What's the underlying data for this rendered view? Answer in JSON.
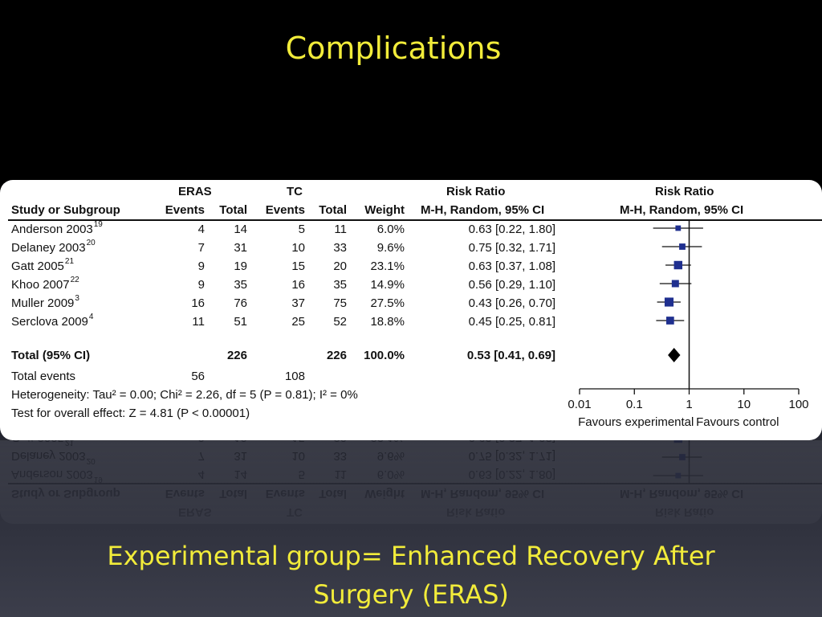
{
  "slide": {
    "title": "Complications",
    "caption_line1": "Experimental group= Enhanced Recovery After",
    "caption_line2": "Surgery (ERAS)"
  },
  "colors": {
    "title": "#f2ec3a",
    "marker": "#1f2f8f",
    "diamond": "#000000"
  },
  "chart_data": {
    "type": "table",
    "subtype": "forest-plot",
    "headers": {
      "group_eras": "ERAS",
      "group_tc": "TC",
      "study": "Study or Subgroup",
      "eras_events": "Events",
      "eras_total": "Total",
      "tc_events": "Events",
      "tc_total": "Total",
      "weight": "Weight",
      "rr_title": "Risk Ratio",
      "rr_method": "M-H, Random, 95% CI",
      "plot_title": "Risk Ratio",
      "plot_method": "M-H, Random, 95% CI"
    },
    "studies": [
      {
        "name": "Anderson 2003",
        "ref": "19",
        "eras_events": "4",
        "eras_total": "14",
        "tc_events": "5",
        "tc_total": "11",
        "weight": "6.0%",
        "ci_text": "0.63 [0.22, 1.80]",
        "rr": 0.63,
        "lo": 0.22,
        "hi": 1.8,
        "w": 6.0
      },
      {
        "name": "Delaney 2003",
        "ref": "20",
        "eras_events": "7",
        "eras_total": "31",
        "tc_events": "10",
        "tc_total": "33",
        "weight": "9.6%",
        "ci_text": "0.75 [0.32, 1.71]",
        "rr": 0.75,
        "lo": 0.32,
        "hi": 1.71,
        "w": 9.6
      },
      {
        "name": "Gatt 2005",
        "ref": "21",
        "eras_events": "9",
        "eras_total": "19",
        "tc_events": "15",
        "tc_total": "20",
        "weight": "23.1%",
        "ci_text": "0.63 [0.37, 1.08]",
        "rr": 0.63,
        "lo": 0.37,
        "hi": 1.08,
        "w": 23.1
      },
      {
        "name": "Khoo 2007",
        "ref": "22",
        "eras_events": "9",
        "eras_total": "35",
        "tc_events": "16",
        "tc_total": "35",
        "weight": "14.9%",
        "ci_text": "0.56 [0.29, 1.10]",
        "rr": 0.56,
        "lo": 0.29,
        "hi": 1.1,
        "w": 14.9
      },
      {
        "name": "Muller 2009",
        "ref": "3",
        "eras_events": "16",
        "eras_total": "76",
        "tc_events": "37",
        "tc_total": "75",
        "weight": "27.5%",
        "ci_text": "0.43 [0.26, 0.70]",
        "rr": 0.43,
        "lo": 0.26,
        "hi": 0.7,
        "w": 27.5
      },
      {
        "name": "Serclova 2009",
        "ref": "4",
        "eras_events": "11",
        "eras_total": "51",
        "tc_events": "25",
        "tc_total": "52",
        "weight": "18.8%",
        "ci_text": "0.45 [0.25, 0.81]",
        "rr": 0.45,
        "lo": 0.25,
        "hi": 0.81,
        "w": 18.8
      }
    ],
    "total": {
      "label": "Total (95% CI)",
      "eras_total": "226",
      "tc_total": "226",
      "weight": "100.0%",
      "ci_text": "0.53 [0.41, 0.69]",
      "rr": 0.53,
      "lo": 0.41,
      "hi": 0.69
    },
    "total_events": {
      "label": "Total events",
      "eras": "56",
      "tc": "108"
    },
    "heterogeneity": "Heterogeneity: Tau² = 0.00; Chi² = 2.26, df = 5 (P = 0.81); I² = 0%",
    "overall_effect": "Test for overall effect: Z = 4.81 (P < 0.00001)",
    "axis": {
      "scale": "log",
      "xlim": [
        0.01,
        100
      ],
      "ticks": [
        0.01,
        0.1,
        1,
        10,
        100
      ],
      "tick_labels": [
        "0.01",
        "0.1",
        "1",
        "10",
        "100"
      ],
      "favours_left": "Favours experimental",
      "favours_right": "Favours control"
    }
  }
}
